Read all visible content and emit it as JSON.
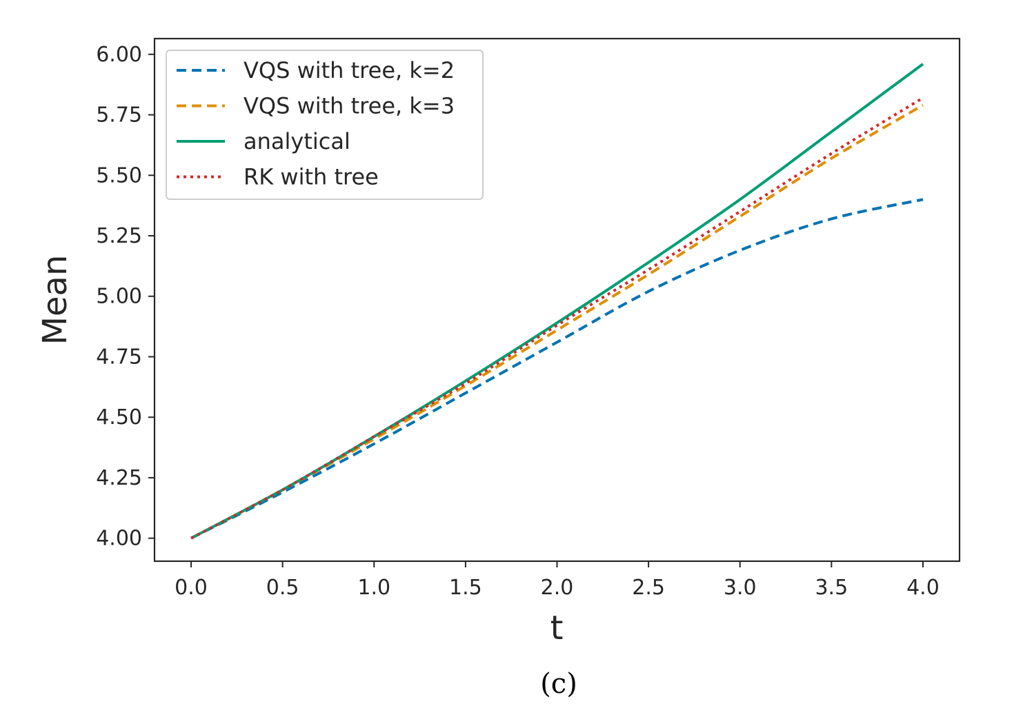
{
  "caption": "(c)",
  "chart_data": {
    "type": "line",
    "title": "",
    "xlabel": "t",
    "ylabel": "Mean",
    "xlim": [
      -0.2,
      4.2
    ],
    "ylim": [
      3.905,
      6.065
    ],
    "xticks": [
      0.0,
      0.5,
      1.0,
      1.5,
      2.0,
      2.5,
      3.0,
      3.5,
      4.0
    ],
    "xtick_labels": [
      "0.0",
      "0.5",
      "1.0",
      "1.5",
      "2.0",
      "2.5",
      "3.0",
      "3.5",
      "4.0"
    ],
    "yticks": [
      4.0,
      4.25,
      4.5,
      4.75,
      5.0,
      5.25,
      5.5,
      5.75,
      6.0
    ],
    "ytick_labels": [
      "4.00",
      "4.25",
      "4.50",
      "4.75",
      "5.00",
      "5.25",
      "5.50",
      "5.75",
      "6.00"
    ],
    "grid": false,
    "legend_position": "top-left",
    "x": [
      0.0,
      0.5,
      1.0,
      1.5,
      2.0,
      2.5,
      3.0,
      3.5,
      4.0
    ],
    "series": [
      {
        "name": "VQS with tree, k=2",
        "color": "#0173b2",
        "style": "dashed",
        "values": [
          4.0,
          4.19,
          4.39,
          4.6,
          4.81,
          5.02,
          5.19,
          5.32,
          5.4
        ]
      },
      {
        "name": "VQS with tree, k=3",
        "color": "#de8f05",
        "style": "dashed",
        "values": [
          4.0,
          4.2,
          4.41,
          4.63,
          4.86,
          5.09,
          5.33,
          5.57,
          5.79
        ]
      },
      {
        "name": "analytical",
        "color": "#029e73",
        "style": "solid",
        "values": [
          4.0,
          4.2,
          4.42,
          4.65,
          4.89,
          5.14,
          5.4,
          5.68,
          5.96
        ]
      },
      {
        "name": "RK with tree",
        "color": "#d62728",
        "style": "dotted",
        "values": [
          4.0,
          4.2,
          4.42,
          4.64,
          4.88,
          5.11,
          5.35,
          5.59,
          5.82
        ]
      }
    ]
  }
}
